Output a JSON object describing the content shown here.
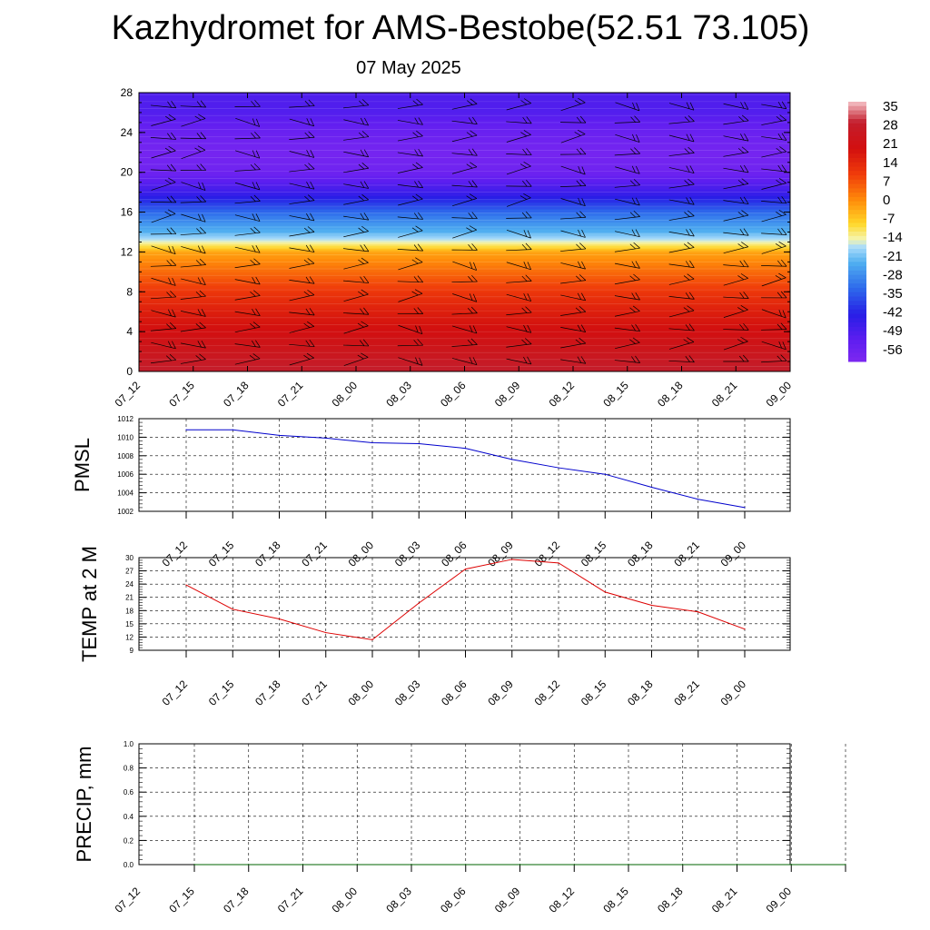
{
  "title": "Kazhydromet for AMS-Bestobe(52.51 73.105)",
  "subtitle": "07 May 2025",
  "colors": {
    "pressure_line": "#0000cc",
    "temperature_line": "#dd0000",
    "precip_line": "#006400"
  },
  "chart_data": [
    {
      "type": "heatmap",
      "title": "",
      "xlabel": "",
      "ylabel": "",
      "x_ticks": [
        "07_12",
        "07_15",
        "07_18",
        "07_21",
        "08_00",
        "08_03",
        "08_06",
        "08_09",
        "08_12",
        "08_15",
        "08_18",
        "08_21",
        "09_00"
      ],
      "y_ticks": [
        0,
        4,
        8,
        12,
        16,
        20,
        24,
        28
      ],
      "ylim": [
        0,
        28
      ],
      "wind_barbs": true,
      "colorbar": {
        "labels": [
          "35",
          "28",
          "21",
          "14",
          "7",
          "0",
          "-7",
          "-14",
          "-21",
          "-28",
          "-35",
          "-42",
          "-49",
          "-56"
        ],
        "range": [
          -60,
          38
        ]
      },
      "profile": {
        "levels": [
          0,
          2,
          4,
          6,
          8,
          10,
          12,
          13,
          14,
          16,
          18,
          20,
          22,
          24,
          26,
          28
        ],
        "values": [
          30,
          25,
          21,
          17,
          12,
          5,
          -2,
          -14,
          -22,
          -32,
          -46,
          -56,
          -58,
          -55,
          -50,
          -49
        ]
      }
    },
    {
      "type": "line",
      "ylabel": "PMSL",
      "x": [
        "07_12",
        "07_15",
        "07_18",
        "07_21",
        "08_00",
        "08_03",
        "08_06",
        "08_09",
        "08_12",
        "08_15",
        "08_18",
        "08_21",
        "09_00"
      ],
      "y": [
        1010.8,
        1010.8,
        1010.2,
        1009.9,
        1009.4,
        1009.3,
        1008.8,
        1007.6,
        1006.7,
        1006.0,
        1004.6,
        1003.3,
        1002.4
      ],
      "ylim": [
        1002,
        1012
      ],
      "y_ticks": [
        "1002",
        "1004",
        "1006",
        "1008",
        "1010",
        "1012"
      ],
      "grid": true
    },
    {
      "type": "line",
      "ylabel": "TEMP at 2 M",
      "x": [
        "07_12",
        "07_15",
        "07_18",
        "07_21",
        "08_00",
        "08_03",
        "08_06",
        "08_09",
        "08_12",
        "08_15",
        "08_18",
        "08_21",
        "09_00"
      ],
      "y": [
        23.8,
        18.3,
        16.1,
        13.0,
        11.4,
        19.7,
        27.4,
        29.6,
        28.8,
        22.2,
        19.2,
        17.7,
        13.8
      ],
      "ylim": [
        9,
        30
      ],
      "y_ticks": [
        "9",
        "12",
        "15",
        "18",
        "21",
        "24",
        "27",
        "30"
      ],
      "grid": true
    },
    {
      "type": "line",
      "ylabel": "PRECIP, mm",
      "x": [
        "07_12",
        "07_15",
        "07_18",
        "07_21",
        "08_00",
        "08_03",
        "08_06",
        "08_09",
        "08_12",
        "08_15",
        "08_18",
        "08_21",
        "09_00"
      ],
      "y": [
        0,
        0,
        0,
        0,
        0,
        0,
        0,
        0,
        0,
        0,
        0,
        0,
        0
      ],
      "ylim": [
        0,
        1
      ],
      "y_ticks": [
        "0.0",
        "0.2",
        "0.4",
        "0.6",
        "0.8",
        "1.0"
      ],
      "grid": true
    }
  ]
}
